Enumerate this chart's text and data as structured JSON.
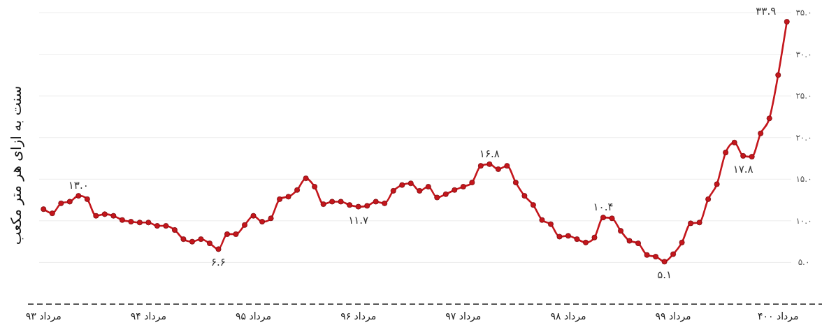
{
  "chart_data": {
    "type": "line",
    "ylabel": "سنت به ازای هر متر مکعب",
    "categories": [
      "مرداد ۹۳",
      null,
      null,
      null,
      null,
      null,
      null,
      null,
      null,
      null,
      null,
      null,
      "مرداد ۹۴",
      null,
      null,
      null,
      null,
      null,
      null,
      null,
      null,
      null,
      null,
      null,
      "مرداد ۹۵",
      null,
      null,
      null,
      null,
      null,
      null,
      null,
      null,
      null,
      null,
      null,
      "مرداد ۹۶",
      null,
      null,
      null,
      null,
      null,
      null,
      null,
      null,
      null,
      null,
      null,
      "مرداد ۹۷",
      null,
      null,
      null,
      null,
      null,
      null,
      null,
      null,
      null,
      null,
      null,
      "مرداد ۹۸",
      null,
      null,
      null,
      null,
      null,
      null,
      null,
      null,
      null,
      null,
      null,
      "مرداد ۹۹",
      null,
      null,
      null,
      null,
      null,
      null,
      null,
      null,
      null,
      null,
      null,
      "مرداد ۴۰۰",
      null
    ],
    "series": [
      {
        "color": "#c4161c",
        "values": [
          11.4,
          10.9,
          12.1,
          12.3,
          13.0,
          12.6,
          10.6,
          10.8,
          10.6,
          10.1,
          9.9,
          9.8,
          9.8,
          9.4,
          9.4,
          8.9,
          7.8,
          7.5,
          7.8,
          7.3,
          6.6,
          8.4,
          8.4,
          9.5,
          10.6,
          9.9,
          10.3,
          12.6,
          12.9,
          13.7,
          15.1,
          14.1,
          12.0,
          12.3,
          12.3,
          11.9,
          11.7,
          11.8,
          12.3,
          12.1,
          13.6,
          14.3,
          14.5,
          13.6,
          14.1,
          12.8,
          13.2,
          13.7,
          14.1,
          14.6,
          16.6,
          16.8,
          16.2,
          16.6,
          14.6,
          13.0,
          11.9,
          10.1,
          9.6,
          8.1,
          8.2,
          7.8,
          7.4,
          8.0,
          10.4,
          10.3,
          8.8,
          7.6,
          7.3,
          5.9,
          5.7,
          5.1,
          6.0,
          7.4,
          9.7,
          9.8,
          12.6,
          14.4,
          18.2,
          19.4,
          17.8,
          17.7,
          20.5,
          22.3,
          27.5,
          33.9
        ],
        "value_labels": [
          null,
          null,
          null,
          null,
          "۱۳.۰",
          null,
          null,
          null,
          null,
          null,
          null,
          null,
          null,
          null,
          null,
          null,
          null,
          null,
          null,
          null,
          "۶.۶",
          null,
          null,
          null,
          null,
          null,
          null,
          null,
          null,
          null,
          null,
          null,
          null,
          null,
          null,
          null,
          "۱۱.۷",
          null,
          null,
          null,
          null,
          null,
          null,
          null,
          null,
          null,
          null,
          null,
          null,
          null,
          null,
          "۱۶.۸",
          null,
          null,
          null,
          null,
          null,
          null,
          null,
          null,
          null,
          null,
          null,
          null,
          "۱۰.۴",
          null,
          null,
          null,
          null,
          null,
          null,
          "۵.۱",
          null,
          null,
          null,
          null,
          null,
          null,
          null,
          null,
          "۱۷.۸",
          null,
          null,
          null,
          null,
          "۳۳.۹"
        ]
      }
    ],
    "ylim": [
      0,
      35
    ],
    "yticks": [
      {
        "value": 5,
        "label": "۵.۰"
      },
      {
        "value": 10,
        "label": "۱۰.۰"
      },
      {
        "value": 15,
        "label": "۱۵.۰"
      },
      {
        "value": 20,
        "label": "۲۰.۰"
      },
      {
        "value": 25,
        "label": "۲۵.۰"
      },
      {
        "value": 30,
        "label": "۳۰.۰"
      },
      {
        "value": 35,
        "label": "۳۵.۰"
      }
    ],
    "grid": "y",
    "marker": "circle",
    "line_style": "solid"
  }
}
